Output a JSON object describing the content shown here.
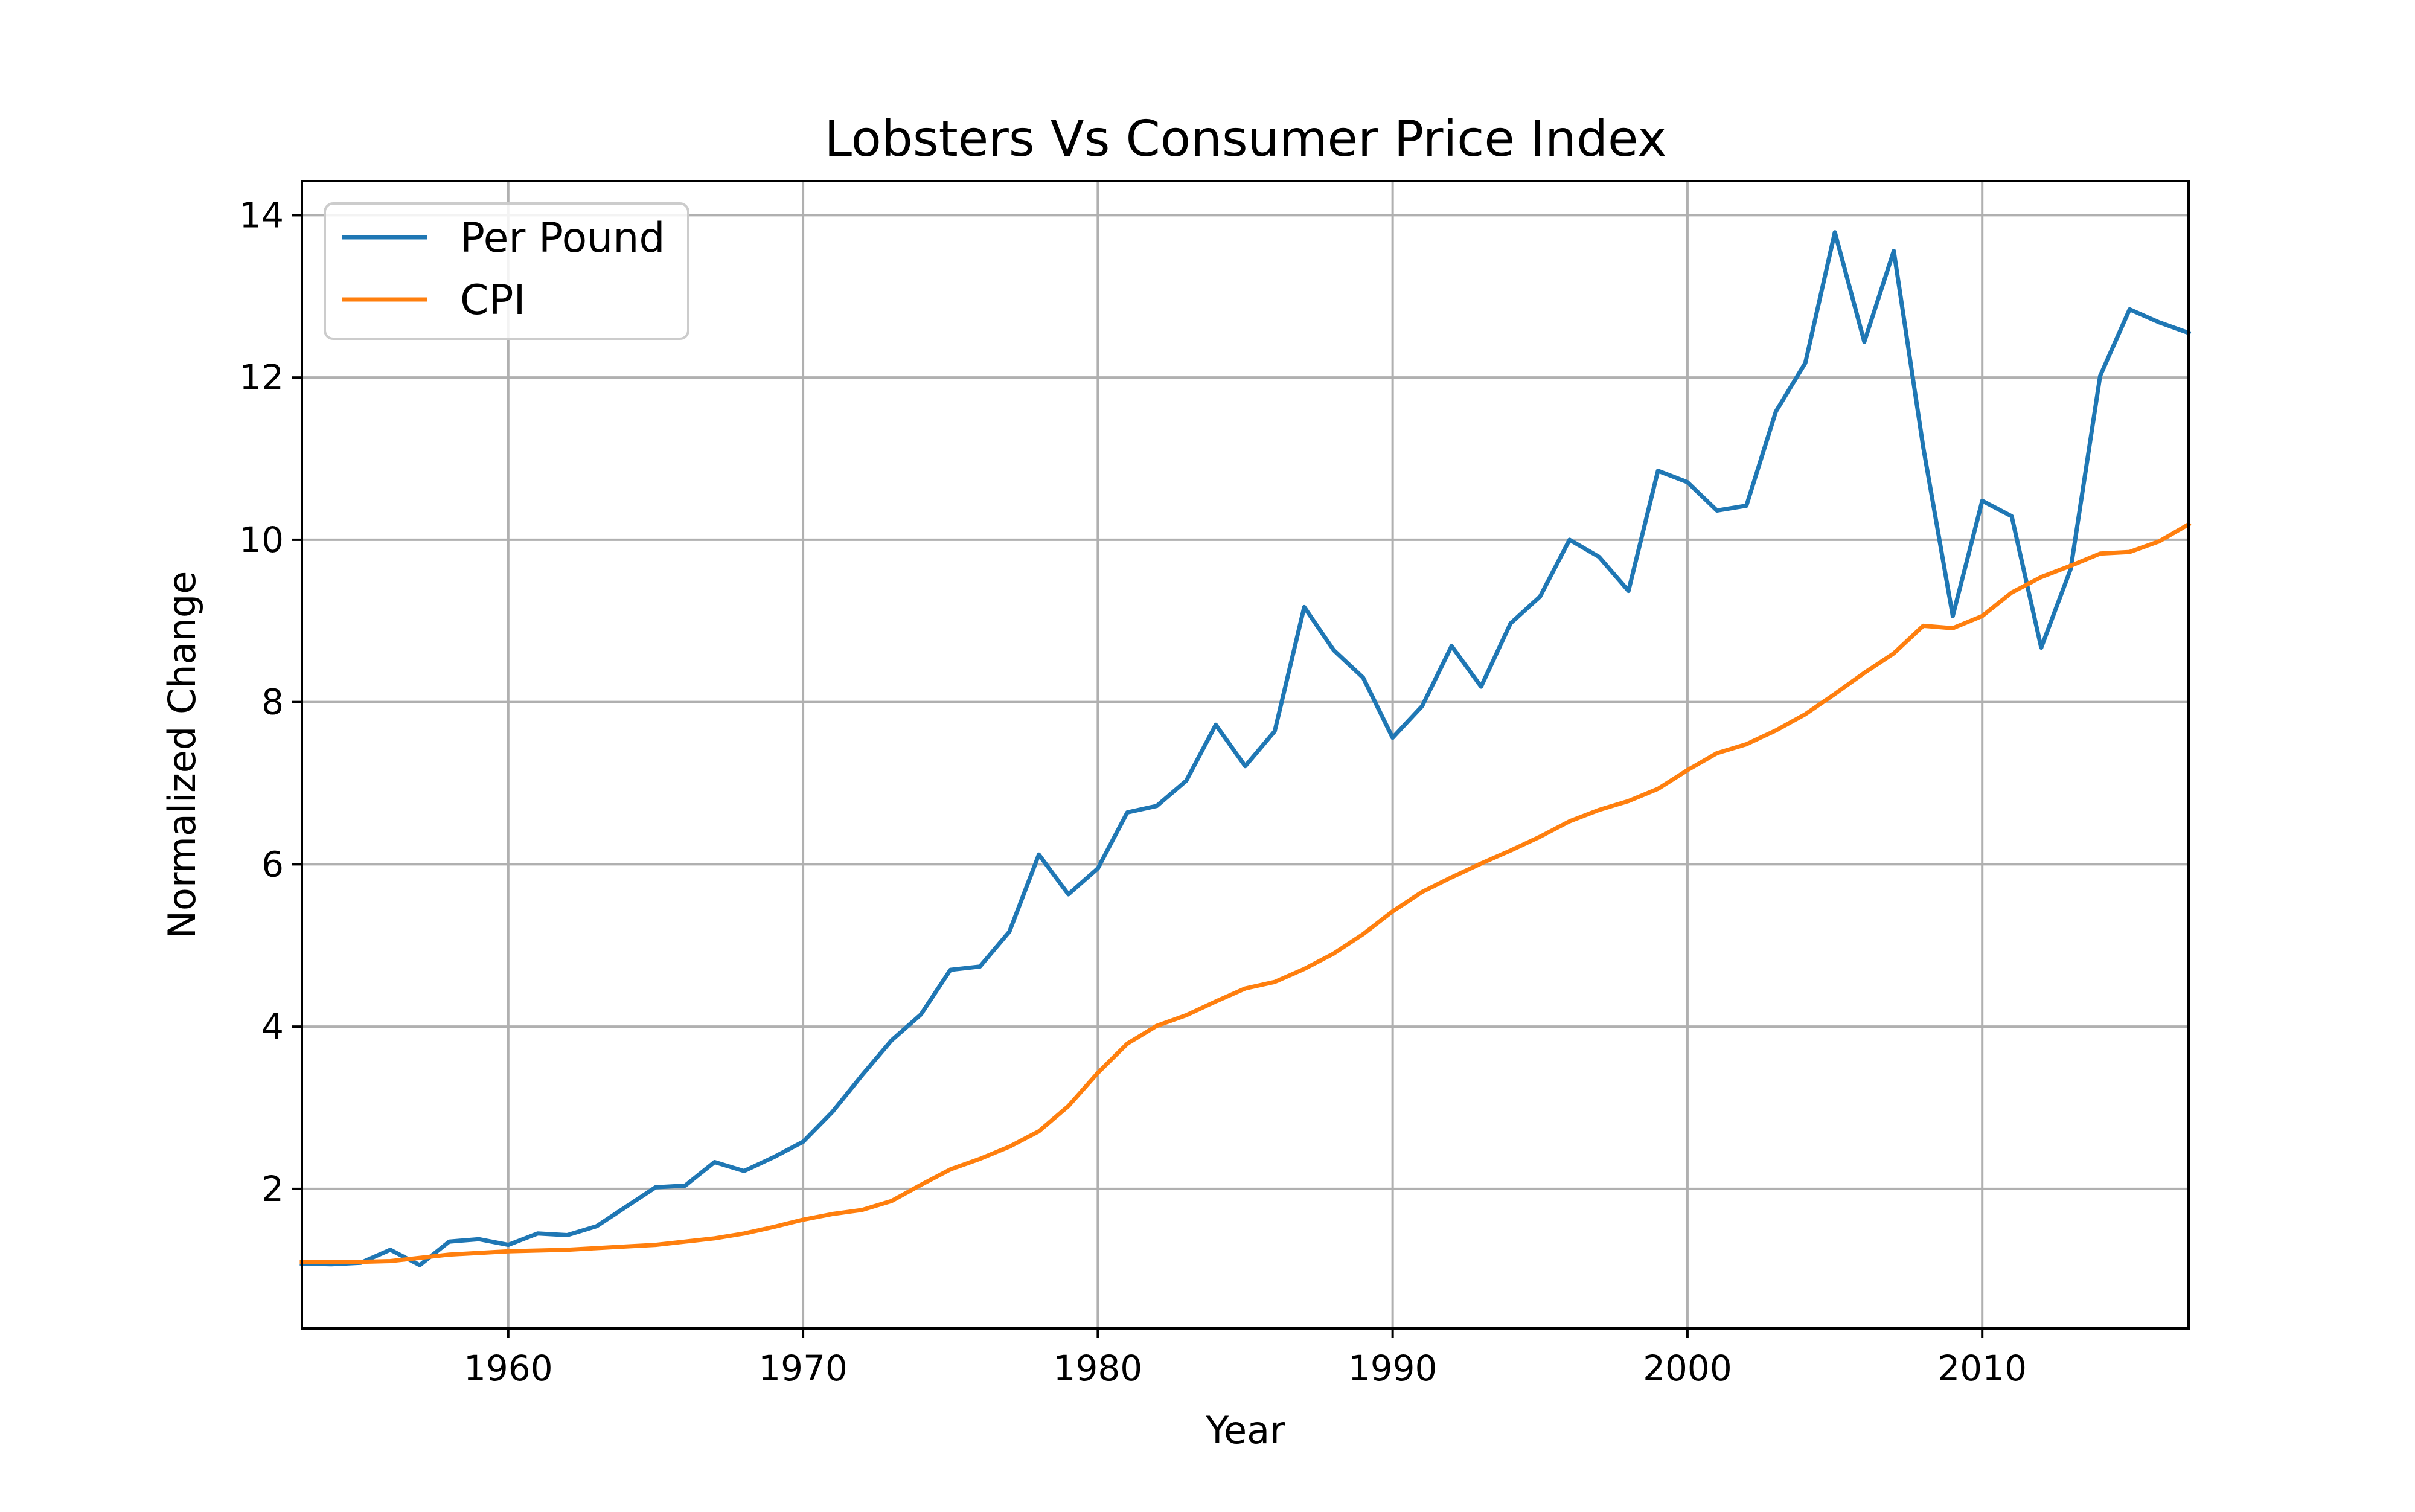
{
  "chart_data": {
    "type": "line",
    "title": "Lobsters Vs Consumer Price Index",
    "xlabel": "Year",
    "ylabel": "Normalized Change",
    "xlim": [
      1953,
      2017
    ],
    "ylim": [
      0.28,
      14.42
    ],
    "xticks": [
      1960,
      1970,
      1980,
      1990,
      2000,
      2010
    ],
    "yticks": [
      2,
      4,
      6,
      8,
      10,
      12,
      14
    ],
    "grid": true,
    "legend_position": "top-left",
    "x": [
      1953,
      1954,
      1955,
      1956,
      1957,
      1958,
      1959,
      1960,
      1961,
      1962,
      1963,
      1964,
      1965,
      1966,
      1967,
      1968,
      1969,
      1970,
      1971,
      1972,
      1973,
      1974,
      1975,
      1976,
      1977,
      1978,
      1979,
      1980,
      1981,
      1982,
      1983,
      1984,
      1985,
      1986,
      1987,
      1988,
      1989,
      1990,
      1991,
      1992,
      1993,
      1994,
      1995,
      1996,
      1997,
      1998,
      1999,
      2000,
      2001,
      2002,
      2003,
      2004,
      2005,
      2006,
      2007,
      2008,
      2009,
      2010,
      2011,
      2012,
      2013,
      2014,
      2015,
      2016,
      2017
    ],
    "series": [
      {
        "name": "Per Pound",
        "color": "#1f77b4",
        "values": [
          1.08,
          1.07,
          1.09,
          1.25,
          1.06,
          1.35,
          1.38,
          1.31,
          1.45,
          1.43,
          1.54,
          1.78,
          2.02,
          2.04,
          2.33,
          2.22,
          2.39,
          2.58,
          2.95,
          3.4,
          3.83,
          4.15,
          4.7,
          4.74,
          5.17,
          6.12,
          5.63,
          5.95,
          6.64,
          6.72,
          7.03,
          7.72,
          7.21,
          7.64,
          9.17,
          8.64,
          8.3,
          7.56,
          7.95,
          8.69,
          8.19,
          8.97,
          9.3,
          10.0,
          9.79,
          9.37,
          10.85,
          10.71,
          10.36,
          10.42,
          11.58,
          12.18,
          13.79,
          12.44,
          13.56,
          11.14,
          9.06,
          10.48,
          10.29,
          8.67,
          9.64,
          12.02,
          12.84,
          12.68,
          12.55
        ]
      },
      {
        "name": "CPI",
        "color": "#ff7f0e",
        "values": [
          1.1,
          1.1,
          1.1,
          1.11,
          1.15,
          1.19,
          1.21,
          1.23,
          1.24,
          1.25,
          1.27,
          1.29,
          1.31,
          1.35,
          1.39,
          1.45,
          1.53,
          1.62,
          1.69,
          1.74,
          1.85,
          2.05,
          2.24,
          2.37,
          2.52,
          2.71,
          3.02,
          3.43,
          3.79,
          4.01,
          4.14,
          4.31,
          4.47,
          4.55,
          4.71,
          4.9,
          5.14,
          5.42,
          5.66,
          5.84,
          6.01,
          6.17,
          6.34,
          6.53,
          6.67,
          6.78,
          6.93,
          7.16,
          7.37,
          7.48,
          7.65,
          7.85,
          8.1,
          8.36,
          8.6,
          8.94,
          8.91,
          9.06,
          9.35,
          9.54,
          9.68,
          9.83,
          9.85,
          9.98,
          10.19
        ]
      }
    ]
  }
}
